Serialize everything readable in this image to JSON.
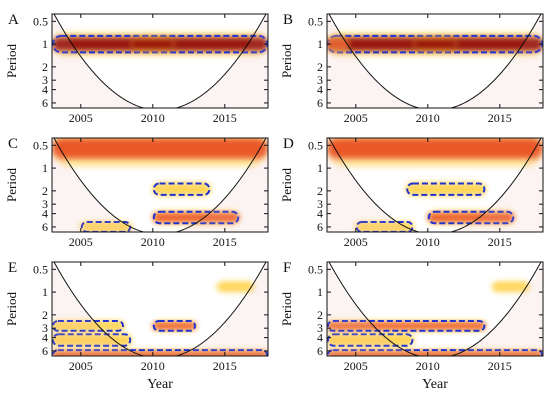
{
  "chart_data": [
    {
      "panel": "A",
      "type": "heatmap",
      "xlabel": "",
      "ylabel": "Period",
      "x_ticks": [
        2005,
        2010,
        2015
      ],
      "y_ticks": [
        "0.5",
        "1",
        "2",
        "3",
        "4",
        "6"
      ],
      "xlim": [
        2003,
        2018
      ],
      "ylim": [
        0.4,
        7
      ],
      "y_scale": "log",
      "bands": [
        {
          "year_start": 2003,
          "year_end": 2018,
          "period_center": 1.0,
          "period_spread": 0.08,
          "strength": 0.9,
          "significant": true
        },
        {
          "year_start": 2008.5,
          "year_end": 2011.5,
          "period_center": 1.0,
          "period_spread": 0.05,
          "strength": 1.0,
          "significant": false
        }
      ],
      "cone": "yes"
    },
    {
      "panel": "B",
      "type": "heatmap",
      "xlabel": "",
      "ylabel": "Period",
      "x_ticks": [
        2005,
        2010,
        2015
      ],
      "y_ticks": [
        "0.5",
        "1",
        "2",
        "3",
        "4",
        "6"
      ],
      "xlim": [
        2003,
        2018
      ],
      "ylim": [
        0.4,
        7
      ],
      "y_scale": "log",
      "bands": [
        {
          "year_start": 2003,
          "year_end": 2018,
          "period_center": 1.0,
          "period_spread": 0.08,
          "strength": 0.9,
          "significant": true
        },
        {
          "year_start": 2009,
          "year_end": 2012,
          "period_center": 1.0,
          "period_spread": 0.05,
          "strength": 1.0,
          "significant": false
        },
        {
          "year_start": 2003,
          "year_end": 2004.5,
          "period_center": 1.0,
          "period_spread": 0.05,
          "strength": 0.8,
          "significant": false
        }
      ],
      "cone": "yes"
    },
    {
      "panel": "C",
      "type": "heatmap",
      "xlabel": "",
      "ylabel": "Period",
      "x_ticks": [
        2005,
        2010,
        2015
      ],
      "y_ticks": [
        "0.5",
        "1",
        "2",
        "3",
        "4",
        "6"
      ],
      "xlim": [
        2003,
        2018
      ],
      "ylim": [
        0.4,
        7
      ],
      "y_scale": "log",
      "bands": [
        {
          "year_start": 2003,
          "year_end": 2018,
          "period_center": 0.55,
          "period_spread": 0.12,
          "strength": 0.75,
          "significant": false
        },
        {
          "year_start": 2010,
          "year_end": 2014,
          "period_center": 1.9,
          "period_spread": 0.05,
          "strength": 0.6,
          "significant": true
        },
        {
          "year_start": 2010,
          "year_end": 2016,
          "period_center": 4.5,
          "period_spread": 0.05,
          "strength": 0.7,
          "significant": true
        },
        {
          "year_start": 2005,
          "year_end": 2008.5,
          "period_center": 6.0,
          "period_spread": 0.04,
          "strength": 0.6,
          "significant": true
        }
      ],
      "cone": "yes"
    },
    {
      "panel": "D",
      "type": "heatmap",
      "xlabel": "",
      "ylabel": "Period",
      "x_ticks": [
        2005,
        2010,
        2015
      ],
      "y_ticks": [
        "0.5",
        "1",
        "2",
        "3",
        "4",
        "6"
      ],
      "xlim": [
        2003,
        2018
      ],
      "ylim": [
        0.4,
        7
      ],
      "y_scale": "log",
      "bands": [
        {
          "year_start": 2003,
          "year_end": 2018,
          "period_center": 0.55,
          "period_spread": 0.12,
          "strength": 0.75,
          "significant": false
        },
        {
          "year_start": 2008.5,
          "year_end": 2014,
          "period_center": 1.9,
          "period_spread": 0.05,
          "strength": 0.6,
          "significant": true
        },
        {
          "year_start": 2010,
          "year_end": 2016,
          "period_center": 4.5,
          "period_spread": 0.05,
          "strength": 0.7,
          "significant": true
        },
        {
          "year_start": 2005,
          "year_end": 2009,
          "period_center": 6.0,
          "period_spread": 0.04,
          "strength": 0.6,
          "significant": true
        }
      ],
      "cone": "yes"
    },
    {
      "panel": "E",
      "type": "heatmap",
      "xlabel": "Year",
      "ylabel": "Period",
      "x_ticks": [
        2005,
        2010,
        2015
      ],
      "y_ticks": [
        "0.5",
        "1",
        "2",
        "3",
        "4",
        "6"
      ],
      "xlim": [
        2003,
        2018
      ],
      "ylim": [
        0.4,
        7
      ],
      "y_scale": "log",
      "bands": [
        {
          "year_start": 2003,
          "year_end": 2018,
          "period_center": 6.8,
          "period_spread": 0.04,
          "strength": 0.8,
          "significant": true
        },
        {
          "year_start": 2003,
          "year_end": 2008.5,
          "period_center": 4.3,
          "period_spread": 0.05,
          "strength": 0.6,
          "significant": true
        },
        {
          "year_start": 2003,
          "year_end": 2008,
          "period_center": 2.8,
          "period_spread": 0.04,
          "strength": 0.5,
          "significant": true
        },
        {
          "year_start": 2010,
          "year_end": 2013,
          "period_center": 2.8,
          "period_spread": 0.04,
          "strength": 0.7,
          "significant": true
        },
        {
          "year_start": 2014.5,
          "year_end": 2017,
          "period_center": 0.85,
          "period_spread": 0.04,
          "strength": 0.5,
          "significant": false
        }
      ],
      "cone": "yes"
    },
    {
      "panel": "F",
      "type": "heatmap",
      "xlabel": "Year",
      "ylabel": "Period",
      "x_ticks": [
        2005,
        2010,
        2015
      ],
      "y_ticks": [
        "0.5",
        "1",
        "2",
        "3",
        "4",
        "6"
      ],
      "xlim": [
        2003,
        2018
      ],
      "ylim": [
        0.4,
        7
      ],
      "y_scale": "log",
      "bands": [
        {
          "year_start": 2003,
          "year_end": 2018,
          "period_center": 6.8,
          "period_spread": 0.04,
          "strength": 0.8,
          "significant": true
        },
        {
          "year_start": 2003,
          "year_end": 2009,
          "period_center": 4.3,
          "period_spread": 0.05,
          "strength": 0.6,
          "significant": true
        },
        {
          "year_start": 2003,
          "year_end": 2014,
          "period_center": 2.8,
          "period_spread": 0.04,
          "strength": 0.7,
          "significant": true
        },
        {
          "year_start": 2014.5,
          "year_end": 2017,
          "period_center": 0.85,
          "period_spread": 0.04,
          "strength": 0.5,
          "significant": false
        }
      ],
      "cone": "yes"
    }
  ],
  "colors": {
    "strong": "#8b0000",
    "mid": "#e8491d",
    "weak": "#ffd24a",
    "background": "#ffffff",
    "contour": "#2233cc",
    "shade": "#e8a7a0"
  }
}
